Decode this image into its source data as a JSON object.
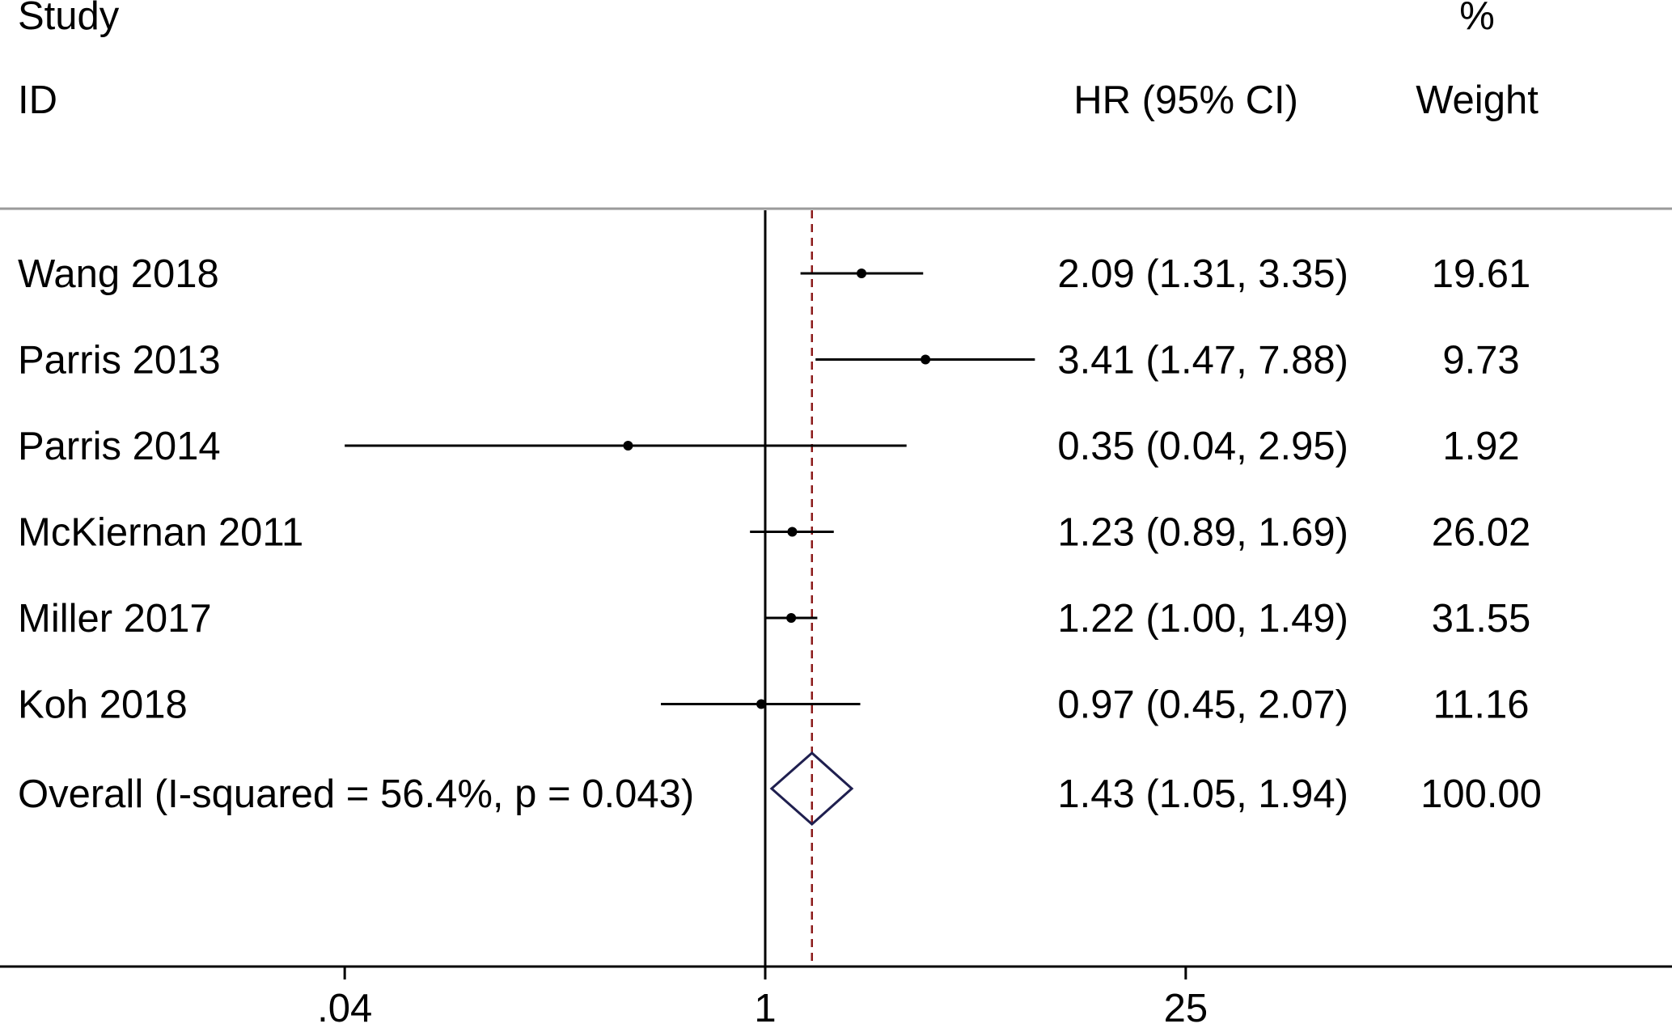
{
  "header": {
    "study_line1": "Study",
    "study_line2": "ID",
    "hr_label": "HR (95% CI)",
    "weight_line1": "%",
    "weight_line2": "Weight"
  },
  "colors": {
    "ink": "#000000",
    "reference_line": "#8b1a1a",
    "diamond": "#1f1f4f",
    "header_rule": "#9a9a9a"
  },
  "chart_data": {
    "type": "forest",
    "x_scale": "log",
    "xlim": [
      0.0016,
      625
    ],
    "xticks": [
      {
        "value": 0.04,
        "label": ".04"
      },
      {
        "value": 1,
        "label": "1"
      },
      {
        "value": 25,
        "label": "25"
      }
    ],
    "null_line": 1,
    "studies": [
      {
        "label": "Wang 2018",
        "hr": 2.09,
        "lo": 1.31,
        "hi": 3.35,
        "ci_text": "2.09 (1.31, 3.35)",
        "weight": "19.61"
      },
      {
        "label": "Parris 2013",
        "hr": 3.41,
        "lo": 1.47,
        "hi": 7.88,
        "ci_text": "3.41 (1.47, 7.88)",
        "weight": "9.73"
      },
      {
        "label": "Parris 2014",
        "hr": 0.35,
        "lo": 0.04,
        "hi": 2.95,
        "ci_text": "0.35 (0.04, 2.95)",
        "weight": "1.92"
      },
      {
        "label": "McKiernan 2011",
        "hr": 1.23,
        "lo": 0.89,
        "hi": 1.69,
        "ci_text": "1.23 (0.89, 1.69)",
        "weight": "26.02"
      },
      {
        "label": "Miller 2017",
        "hr": 1.22,
        "lo": 1.0,
        "hi": 1.49,
        "ci_text": "1.22 (1.00, 1.49)",
        "weight": "31.55"
      },
      {
        "label": "Koh 2018",
        "hr": 0.97,
        "lo": 0.45,
        "hi": 2.07,
        "ci_text": "0.97 (0.45, 2.07)",
        "weight": "11.16"
      }
    ],
    "overall": {
      "label": "Overall  (I-squared = 56.4%, p = 0.043)",
      "hr": 1.43,
      "lo": 1.05,
      "hi": 1.94,
      "ci_text": "1.43 (1.05, 1.94)",
      "weight": "100.00"
    }
  }
}
